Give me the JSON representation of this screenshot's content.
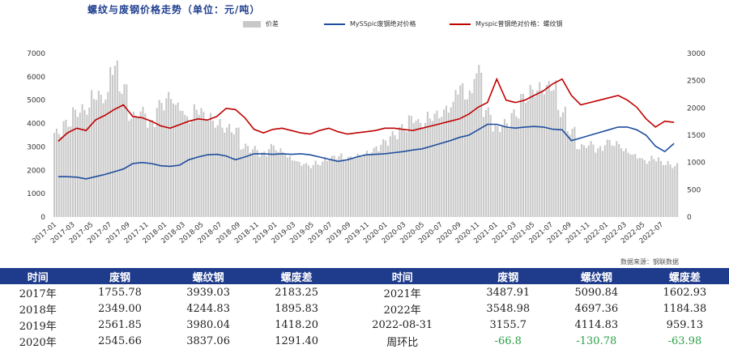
{
  "title": "螺纹与废钢价格走势（单位：元/吨）",
  "legend": {
    "bar": "价差",
    "blue": "MySSpic废钢绝对价格",
    "red": "Myspic普钢绝对价格：螺纹钢"
  },
  "colors": {
    "bar": "#c8c8c8",
    "blue": "#1f4e9e",
    "red": "#c00000",
    "header": "#1f3b8c",
    "green": "#2aa146"
  },
  "chart_data": {
    "type": "bar+line",
    "left_axis": {
      "ticks": [
        0,
        1000,
        2000,
        3000,
        4000,
        5000,
        6000,
        7000
      ],
      "range": [
        0,
        7000
      ]
    },
    "right_axis": {
      "ticks": [
        0,
        500,
        1000,
        1500,
        2000,
        2500,
        3000
      ],
      "range": [
        0,
        3000
      ]
    },
    "x_labels": [
      "2017-01",
      "2017-03",
      "2017-05",
      "2017-07",
      "2017-09",
      "2017-11",
      "2018-01",
      "2018-03",
      "2018-05",
      "2018-07",
      "2018-09",
      "2018-11",
      "2019-01",
      "2019-03",
      "2019-05",
      "2019-07",
      "2019-09",
      "2019-11",
      "2020-01",
      "2020-03",
      "2020-05",
      "2020-07",
      "2020-09",
      "2020-11",
      "2021-01",
      "2021-03",
      "2021-05",
      "2021-07",
      "2021-09",
      "2021-11",
      "2022-01",
      "2022-03",
      "2022-05",
      "2022-07"
    ],
    "series": [
      {
        "name": "Myspic普钢绝对价格：螺纹钢",
        "axis": "left",
        "type": "line",
        "values": [
          3240,
          3600,
          3800,
          3700,
          4150,
          4350,
          4600,
          4800,
          4300,
          4250,
          4100,
          3900,
          3800,
          3950,
          4100,
          4200,
          4150,
          4300,
          4650,
          4600,
          4250,
          3750,
          3600,
          3750,
          3800,
          3700,
          3600,
          3550,
          3700,
          3800,
          3650,
          3550,
          3600,
          3650,
          3700,
          3800,
          3800,
          3750,
          3700,
          3800,
          3900,
          4000,
          4100,
          4200,
          4400,
          4700,
          4900,
          5900,
          5000,
          4900,
          5000,
          5200,
          5400,
          5700,
          5900,
          5200,
          4800,
          4900,
          5000,
          5100,
          5200,
          5000,
          4700,
          4200,
          3850,
          4100,
          4050
        ]
      },
      {
        "name": "MySSpic废钢绝对价格",
        "axis": "right",
        "type": "line",
        "values": [
          740,
          740,
          730,
          700,
          740,
          780,
          830,
          880,
          980,
          1000,
          980,
          940,
          930,
          950,
          1050,
          1100,
          1140,
          1150,
          1120,
          1050,
          1100,
          1160,
          1160,
          1150,
          1160,
          1150,
          1160,
          1140,
          1100,
          1060,
          1020,
          1050,
          1100,
          1140,
          1150,
          1160,
          1180,
          1200,
          1230,
          1250,
          1300,
          1350,
          1400,
          1460,
          1500,
          1600,
          1700,
          1700,
          1650,
          1630,
          1650,
          1660,
          1650,
          1610,
          1600,
          1400,
          1450,
          1500,
          1550,
          1600,
          1650,
          1650,
          1600,
          1500,
          1300,
          1200,
          1350
        ]
      },
      {
        "name": "价差",
        "axis": "left",
        "type": "bar",
        "values": [
          3600,
          4000,
          4500,
          4600,
          5200,
          5100,
          6400,
          5500,
          4300,
          4500,
          4000,
          4800,
          5100,
          4700,
          4200,
          4600,
          4300,
          4000,
          3800,
          3700,
          3000,
          2900,
          2700,
          3000,
          2800,
          2500,
          2300,
          2200,
          2300,
          2500,
          2600,
          2500,
          2600,
          2700,
          2900,
          3200,
          3500,
          3800,
          4200,
          4000,
          4300,
          4400,
          4700,
          5500,
          5200,
          6200,
          4500,
          3800,
          4000,
          4400,
          5100,
          5400,
          5500,
          5600,
          4500,
          3700,
          3000,
          3100,
          2900,
          3200,
          3100,
          2800,
          2600,
          2400,
          2500,
          2300,
          2200
        ]
      }
    ]
  },
  "source": "数据来源：钢联数据",
  "table": {
    "headers": [
      "时间",
      "废钢",
      "螺纹钢",
      "螺废差",
      "时间",
      "废钢",
      "螺纹钢",
      "螺废差"
    ],
    "rows": [
      [
        "2017年",
        "1755.78",
        "3939.03",
        "2183.25",
        "2021年",
        "3487.91",
        "5090.84",
        "1602.93"
      ],
      [
        "2018年",
        "2349.00",
        "4244.83",
        "1895.83",
        "2022年",
        "3548.98",
        "4697.36",
        "1184.38"
      ],
      [
        "2019年",
        "2561.85",
        "3980.04",
        "1418.20",
        "2022-08-31",
        "3155.7",
        "4114.83",
        "959.13"
      ],
      [
        "2020年",
        "2545.66",
        "3837.06",
        "1291.40",
        "周环比",
        "-66.8",
        "-130.78",
        "-63.98"
      ]
    ]
  }
}
